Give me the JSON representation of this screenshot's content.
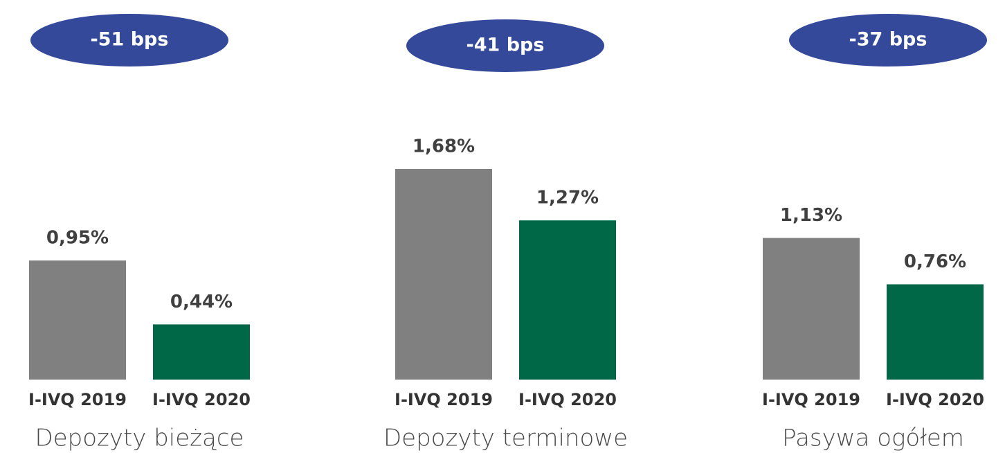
{
  "chart_data": [
    {
      "type": "bar",
      "title": "Depozyty bieżące",
      "annotation": "-51 bps",
      "categories": [
        "I-IVQ 2019",
        "I-IVQ 2020"
      ],
      "values": [
        0.95,
        0.44
      ],
      "value_labels": [
        "0,95%",
        "0,44%"
      ],
      "colors": [
        "#808080",
        "#006747"
      ]
    },
    {
      "type": "bar",
      "title": "Depozyty terminowe",
      "annotation": "-41 bps",
      "categories": [
        "I-IVQ 2019",
        "I-IVQ 2020"
      ],
      "values": [
        1.68,
        1.27
      ],
      "value_labels": [
        "1,68%",
        "1,27%"
      ],
      "colors": [
        "#808080",
        "#006747"
      ]
    },
    {
      "type": "bar",
      "title": "Pasywa ogółem",
      "annotation": "-37 bps",
      "categories": [
        "I-IVQ 2019",
        "I-IVQ 2020"
      ],
      "values": [
        1.13,
        0.76
      ],
      "value_labels": [
        "1,13%",
        "0,76%"
      ],
      "colors": [
        "#808080",
        "#006747"
      ]
    }
  ]
}
